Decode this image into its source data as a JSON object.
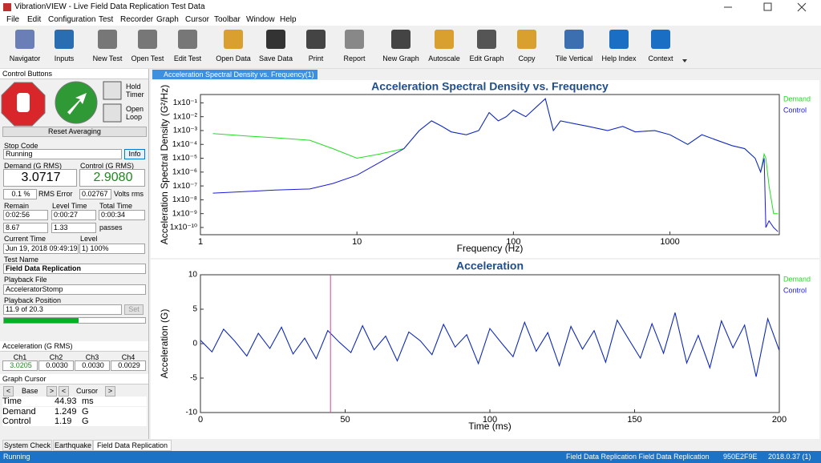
{
  "window": {
    "title": "VibrationVIEW - Live Field Data Replication Test Data",
    "menu": [
      "File",
      "Edit",
      "Configuration",
      "Test",
      "Recorder",
      "Graph",
      "Cursor",
      "Toolbar",
      "Window",
      "Help"
    ],
    "toolbar": [
      "Navigator",
      "Inputs",
      "New Test",
      "Open Test",
      "Edit Test",
      "Open Data",
      "Save Data",
      "Print",
      "Report",
      "New Graph",
      "Autoscale",
      "Edit Graph",
      "Copy",
      "Tile Vertical",
      "Help Index",
      "Context"
    ],
    "control_panel": {
      "title": "Control Buttons",
      "hold": [
        "Hold",
        "Timer"
      ],
      "open": [
        "Open",
        "Loop"
      ],
      "reset": "Reset Averaging",
      "stop_code_label": "Stop Code",
      "stop_code": "Running",
      "info": "Info",
      "demand_label": "Demand (G RMS)",
      "demand": "3.0717",
      "control_label": "Control (G RMS)",
      "control": "2.9080",
      "rms_error": "0.1 %",
      "rms_error_label": "RMS Error",
      "volts": "0.02767",
      "volts_label": "Volts rms",
      "remain_label": "Remain",
      "remain": "0:02:56",
      "level_time_label": "Level Time",
      "level_time": "0:00:27",
      "total_time_label": "Total Time",
      "total_time": "0:00:34",
      "remain_passes": "8.67",
      "level_passes": "1.33",
      "passes_label": "passes",
      "current_time_label": "Current Time",
      "current_time": "Jun 19, 2018 09:49:19",
      "level_label": "Level",
      "level": "1) 100%",
      "test_name_label": "Test Name",
      "test_name": "Field Data Replication",
      "playback_file_label": "Playback File",
      "playback_file": "AcceleratorStomp",
      "playback_position_label": "Playback Position",
      "playback_position": "11.9 of 20.3",
      "set": "Set"
    },
    "channels": {
      "title": "Acceleration (G RMS)",
      "names": [
        "Ch1",
        "Ch2",
        "Ch3",
        "Ch4"
      ],
      "values": [
        "3.0205",
        "0.0030",
        "0.0030",
        "0.0029"
      ]
    },
    "graph_cursor": {
      "title": "Graph Cursor",
      "prev_base": "<",
      "base": "Base",
      "next_base": ">",
      "prev_cursor": "<",
      "cursor": "Cursor",
      "next_cursor": ">",
      "rows": [
        {
          "label": "Time",
          "value": 44.93,
          "unit": "ms"
        },
        {
          "label": "Demand",
          "value": 1.249,
          "unit": "G"
        },
        {
          "label": "Control",
          "value": 1.19,
          "unit": "G"
        }
      ]
    },
    "tabs": [
      "System Check",
      "Earthquake",
      "Field Data Replication"
    ],
    "graph_tab": "Acceleration Spectral Density vs. Frequency(1)",
    "status_bar": [
      "Running",
      "Field Data Replication Field Data Replication",
      "950E2F9E",
      "2018.0.37 (1)"
    ]
  },
  "chart_data": [
    {
      "type": "line",
      "title": "Acceleration Spectral Density vs. Frequency",
      "x_label": "Frequency (Hz)",
      "y_label": "Acceleration Spectral Density (G²/Hz)",
      "xscale": "log",
      "yscale": "log",
      "xlim": [
        1,
        5000
      ],
      "ylim": [
        3e-11,
        0.4
      ],
      "xticks": [
        1,
        10,
        100,
        1000
      ],
      "yticks": [
        {
          "value": 0.1,
          "label": "1x10⁻¹"
        },
        {
          "value": 0.01,
          "label": "1x10⁻²"
        },
        {
          "value": 0.001,
          "label": "1x10⁻³"
        },
        {
          "value": 0.0001,
          "label": "1x10⁻⁴"
        },
        {
          "value": 1e-05,
          "label": "1x10⁻⁵"
        },
        {
          "value": 1e-06,
          "label": "1x10⁻⁶"
        },
        {
          "value": 1e-07,
          "label": "1x10⁻⁷"
        },
        {
          "value": 1e-08,
          "label": "1x10⁻⁸"
        },
        {
          "value": 1e-09,
          "label": "1x10⁻⁹"
        },
        {
          "value": 1e-10,
          "label": "1x10⁻¹⁰"
        }
      ],
      "legend": "top-right",
      "x": [
        1.2,
        2,
        3,
        5,
        7,
        10,
        14,
        20,
        25,
        30,
        35,
        40,
        50,
        60,
        70,
        80,
        90,
        100,
        120,
        140,
        160,
        180,
        200,
        250,
        300,
        400,
        500,
        600,
        800,
        1000,
        1300,
        1600,
        2000,
        2500,
        3000,
        3500,
        3800,
        4000,
        4100,
        4300,
        4600,
        4900
      ],
      "series": [
        {
          "name": "Demand",
          "color": "#22dd22",
          "values": [
            0.0006,
            0.0004,
            0.0003,
            0.0002,
            5e-05,
            1e-05,
            2e-05,
            5e-05,
            0.001,
            0.005,
            0.002,
            0.0008,
            0.0005,
            0.001,
            0.02,
            0.005,
            0.01,
            0.03,
            0.01,
            0.05,
            0.2,
            0.001,
            0.005,
            0.003,
            0.002,
            0.001,
            0.002,
            0.0008,
            0.001,
            0.0005,
            0.0001,
            0.0005,
            0.0002,
            8e-05,
            5e-05,
            1e-05,
            1e-06,
            2e-05,
            1e-05,
            1e-07,
            1e-09,
            1e-09
          ]
        },
        {
          "name": "Control",
          "color": "#1a1ad6",
          "values": [
            3e-08,
            4e-08,
            5e-08,
            6e-08,
            1.5e-07,
            6e-07,
            5e-06,
            5e-05,
            0.001,
            0.005,
            0.002,
            0.0008,
            0.0005,
            0.001,
            0.02,
            0.005,
            0.01,
            0.03,
            0.01,
            0.05,
            0.2,
            0.001,
            0.005,
            0.003,
            0.002,
            0.001,
            0.002,
            0.0008,
            0.001,
            0.0005,
            0.0001,
            0.0005,
            0.0002,
            8e-05,
            5e-05,
            1e-05,
            1e-06,
            1e-05,
            1e-10,
            3e-10,
            1e-10,
            5e-11
          ]
        }
      ]
    },
    {
      "type": "line",
      "title": "Acceleration",
      "x_label": "Time (ms)",
      "y_label": "Acceleration (G)",
      "xlim": [
        0,
        200
      ],
      "ylim": [
        -10,
        10
      ],
      "xticks": [
        0,
        50,
        100,
        150,
        200
      ],
      "yticks": [
        -10,
        -5,
        0,
        5,
        10
      ],
      "legend": "top-right",
      "x": [
        0,
        4,
        8,
        12,
        16,
        20,
        24,
        28,
        32,
        36,
        40,
        44,
        48,
        52,
        56,
        60,
        64,
        68,
        72,
        76,
        80,
        84,
        88,
        92,
        96,
        100,
        104,
        108,
        112,
        116,
        120,
        124,
        128,
        132,
        136,
        140,
        144,
        148,
        152,
        156,
        160,
        164,
        168,
        172,
        176,
        180,
        184,
        188,
        192,
        196,
        200
      ],
      "series": [
        {
          "name": "Demand",
          "color": "#22dd22",
          "values": [
            0.5,
            -1.2,
            2.1,
            0.3,
            -1.8,
            1.5,
            -0.7,
            2.4,
            -1.5,
            0.8,
            -2.2,
            1.9,
            0.2,
            -1.3,
            2.6,
            -0.9,
            1.1,
            -2.5,
            1.7,
            0.4,
            -1.6,
            2.8,
            -0.5,
            1.3,
            -2.9,
            2.2,
            0.1,
            -1.9,
            3.1,
            -1.1,
            1.6,
            -3.2,
            2.5,
            -0.8,
            1.9,
            -2.7,
            3.4,
            0.6,
            -2.1,
            2.9,
            -1.4,
            4.5,
            -2.8,
            1.2,
            -3.5,
            3.3,
            -0.6,
            2.7,
            -4.8,
            3.6,
            -1.0
          ]
        },
        {
          "name": "Control",
          "color": "#1a1ad6",
          "values": [
            0.5,
            -1.2,
            2.1,
            0.3,
            -1.8,
            1.5,
            -0.7,
            2.4,
            -1.5,
            0.8,
            -2.2,
            1.9,
            0.2,
            -1.3,
            2.6,
            -0.9,
            1.1,
            -2.5,
            1.7,
            0.4,
            -1.6,
            2.8,
            -0.5,
            1.3,
            -2.9,
            2.2,
            0.1,
            -1.9,
            3.1,
            -1.1,
            1.6,
            -3.2,
            2.5,
            -0.8,
            1.9,
            -2.7,
            3.4,
            0.6,
            -2.1,
            2.9,
            -1.4,
            4.5,
            -2.8,
            1.2,
            -3.5,
            3.3,
            -0.6,
            2.7,
            -4.8,
            3.6,
            -1.0
          ]
        }
      ]
    }
  ]
}
